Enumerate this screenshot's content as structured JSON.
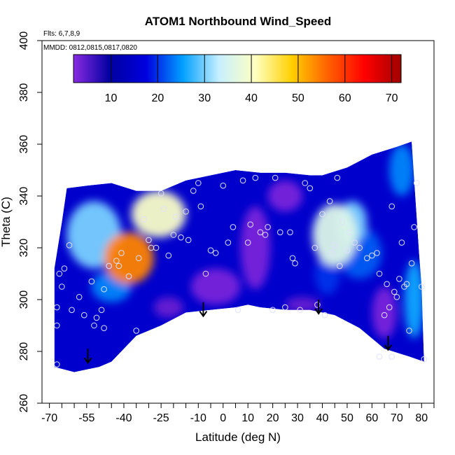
{
  "chart_data": {
    "type": "heatmap",
    "title": "ATOM1 Northbound Wind_Speed",
    "annotations": [
      "Flts: 6,7,8,9",
      "MMDD: 0812,0815,0817,0820"
    ],
    "xlabel": "Latitude (deg N)",
    "ylabel": "Theta (C)",
    "xlim": [
      -73,
      85
    ],
    "ylim": [
      260,
      400
    ],
    "x_ticks": [
      -70,
      -55,
      -40,
      -25,
      -10,
      0,
      10,
      20,
      30,
      40,
      50,
      60,
      70,
      80
    ],
    "x_tick_labels": [
      "-70",
      "-55",
      "-40",
      "-25",
      "-10",
      "0",
      "10",
      "20",
      "30",
      "40",
      "50",
      "60",
      "70",
      "80"
    ],
    "x_minor_ticks": [
      -65,
      -60,
      -50,
      -45,
      -35,
      -30,
      -20,
      -15,
      -5,
      5,
      15,
      25,
      35,
      45,
      55,
      65,
      75,
      85
    ],
    "y_ticks": [
      260,
      280,
      300,
      320,
      340,
      360,
      380,
      400
    ],
    "y_tick_labels": [
      "260",
      "280",
      "300",
      "320",
      "340",
      "360",
      "380",
      "400"
    ],
    "colorbar": {
      "range": [
        2,
        72
      ],
      "ticks": [
        10,
        20,
        30,
        40,
        50,
        60,
        70
      ],
      "tick_labels": [
        "10",
        "20",
        "30",
        "40",
        "50",
        "60",
        "70"
      ],
      "colors": [
        "#8a2be2",
        "#0000a0",
        "#0000e0",
        "#00a0ff",
        "#c8f0ff",
        "#ffffc0",
        "#ffd000",
        "#ff6000",
        "#ff0000",
        "#a00000"
      ]
    },
    "outline_top": [
      [
        -68,
        312
      ],
      [
        -65,
        330
      ],
      [
        -63,
        343
      ],
      [
        -55,
        344
      ],
      [
        -45,
        345
      ],
      [
        -35,
        342
      ],
      [
        -25,
        342
      ],
      [
        -15,
        346
      ],
      [
        -5,
        348
      ],
      [
        5,
        350
      ],
      [
        15,
        349
      ],
      [
        25,
        349
      ],
      [
        35,
        348
      ],
      [
        40,
        348
      ],
      [
        50,
        351
      ],
      [
        60,
        356
      ],
      [
        70,
        359
      ],
      [
        76,
        361
      ],
      [
        79,
        318
      ],
      [
        80,
        305
      ],
      [
        81,
        276
      ]
    ],
    "outline_bottom": [
      [
        -68,
        312
      ],
      [
        -68,
        274
      ],
      [
        -60,
        272
      ],
      [
        -50,
        274
      ],
      [
        -45,
        276
      ],
      [
        -35,
        286
      ],
      [
        -25,
        290
      ],
      [
        -15,
        295
      ],
      [
        -5,
        296
      ],
      [
        5,
        297
      ],
      [
        10,
        298
      ],
      [
        15,
        297
      ],
      [
        25,
        296
      ],
      [
        35,
        296
      ],
      [
        45,
        294
      ],
      [
        55,
        289
      ],
      [
        65,
        281
      ],
      [
        75,
        278
      ],
      [
        81,
        276
      ]
    ],
    "hotspots": [
      {
        "lat": -38,
        "theta": 316,
        "value": 54,
        "rx": 10,
        "ry": 10
      },
      {
        "lat": -26,
        "theta": 333,
        "value": 40,
        "rx": 11,
        "ry": 9
      },
      {
        "lat": -52,
        "theta": 325,
        "value": 30,
        "rx": 11,
        "ry": 13
      },
      {
        "lat": -45,
        "theta": 305,
        "value": 24,
        "rx": 8,
        "ry": 6
      },
      {
        "lat": 45,
        "theta": 325,
        "value": 36,
        "rx": 9,
        "ry": 12
      },
      {
        "lat": 52,
        "theta": 330,
        "value": 30,
        "rx": 6,
        "ry": 8
      },
      {
        "lat": 55,
        "theta": 318,
        "value": 22,
        "rx": 9,
        "ry": 10
      },
      {
        "lat": 42,
        "theta": 310,
        "value": 20,
        "rx": 5,
        "ry": 8
      },
      {
        "lat": 77,
        "theta": 300,
        "value": 26,
        "rx": 4,
        "ry": 15
      },
      {
        "lat": 72,
        "theta": 350,
        "value": 24,
        "rx": 5,
        "ry": 10
      },
      {
        "lat": -3,
        "theta": 305,
        "value": 3,
        "rx": 10,
        "ry": 7
      },
      {
        "lat": 13,
        "theta": 320,
        "value": 3,
        "rx": 6,
        "ry": 16
      },
      {
        "lat": 65,
        "theta": 295,
        "value": 3,
        "rx": 5,
        "ry": 10
      },
      {
        "lat": -22,
        "theta": 297,
        "value": 4,
        "rx": 6,
        "ry": 4
      },
      {
        "lat": 32,
        "theta": 298,
        "value": 4,
        "rx": 7,
        "ry": 3
      },
      {
        "lat": 25,
        "theta": 340,
        "value": 3,
        "rx": 7,
        "ry": 6
      }
    ],
    "flight_points": [
      [
        -67,
        275
      ],
      [
        -67,
        290
      ],
      [
        -67,
        297
      ],
      [
        -65,
        305
      ],
      [
        -66,
        310
      ],
      [
        -64,
        312
      ],
      [
        -62,
        321
      ],
      [
        -61,
        296
      ],
      [
        -58,
        301
      ],
      [
        -56,
        294
      ],
      [
        -53,
        307
      ],
      [
        -52,
        290
      ],
      [
        -51,
        293
      ],
      [
        -49,
        296
      ],
      [
        -48,
        304
      ],
      [
        -48,
        289
      ],
      [
        -46,
        313
      ],
      [
        -43,
        315
      ],
      [
        -42,
        313
      ],
      [
        -41,
        318
      ],
      [
        -38,
        309
      ],
      [
        -35,
        288
      ],
      [
        -34,
        316
      ],
      [
        -32,
        331
      ],
      [
        -30,
        323
      ],
      [
        -29,
        320
      ],
      [
        -27,
        320
      ],
      [
        -25,
        341
      ],
      [
        -24,
        335
      ],
      [
        -22,
        317
      ],
      [
        -20,
        325
      ],
      [
        -19,
        332
      ],
      [
        -17,
        324
      ],
      [
        -15,
        334
      ],
      [
        -14,
        323
      ],
      [
        -12,
        342
      ],
      [
        -10,
        345
      ],
      [
        -9,
        336
      ],
      [
        -7,
        310
      ],
      [
        -5,
        319
      ],
      [
        -3,
        318
      ],
      [
        0,
        344
      ],
      [
        2,
        322
      ],
      [
        4,
        328
      ],
      [
        6,
        296
      ],
      [
        8,
        346
      ],
      [
        10,
        322
      ],
      [
        11,
        329
      ],
      [
        13,
        347
      ],
      [
        15,
        326
      ],
      [
        17,
        325
      ],
      [
        18,
        328
      ],
      [
        20,
        296
      ],
      [
        21,
        347
      ],
      [
        23,
        326
      ],
      [
        25,
        297
      ],
      [
        27,
        326
      ],
      [
        28,
        316
      ],
      [
        29,
        314
      ],
      [
        31,
        296
      ],
      [
        33,
        345
      ],
      [
        35,
        343
      ],
      [
        37,
        320
      ],
      [
        38,
        298
      ],
      [
        40,
        333
      ],
      [
        41,
        294
      ],
      [
        43,
        338
      ],
      [
        44,
        318
      ],
      [
        45,
        321
      ],
      [
        46,
        347
      ],
      [
        47,
        313
      ],
      [
        48,
        330
      ],
      [
        50,
        319
      ],
      [
        51,
        326
      ],
      [
        53,
        322
      ],
      [
        55,
        320
      ],
      [
        58,
        316
      ],
      [
        60,
        317
      ],
      [
        62,
        318
      ],
      [
        63,
        310
      ],
      [
        65,
        294
      ],
      [
        66,
        306
      ],
      [
        67,
        297
      ],
      [
        68,
        336
      ],
      [
        69,
        303
      ],
      [
        70,
        301
      ],
      [
        71,
        308
      ],
      [
        72,
        322
      ],
      [
        73,
        305
      ],
      [
        74,
        306
      ],
      [
        75,
        288
      ],
      [
        76,
        314
      ],
      [
        77,
        328
      ],
      [
        78,
        345
      ],
      [
        80,
        305
      ],
      [
        81,
        277
      ],
      [
        63,
        278
      ],
      [
        68,
        278
      ]
    ],
    "down_arrows": [
      {
        "lat": -54.5,
        "theta": 281
      },
      {
        "lat": -8,
        "theta": 299
      },
      {
        "lat": 38.5,
        "theta": 300
      },
      {
        "lat": 66.5,
        "theta": 286
      }
    ],
    "grid": false
  }
}
